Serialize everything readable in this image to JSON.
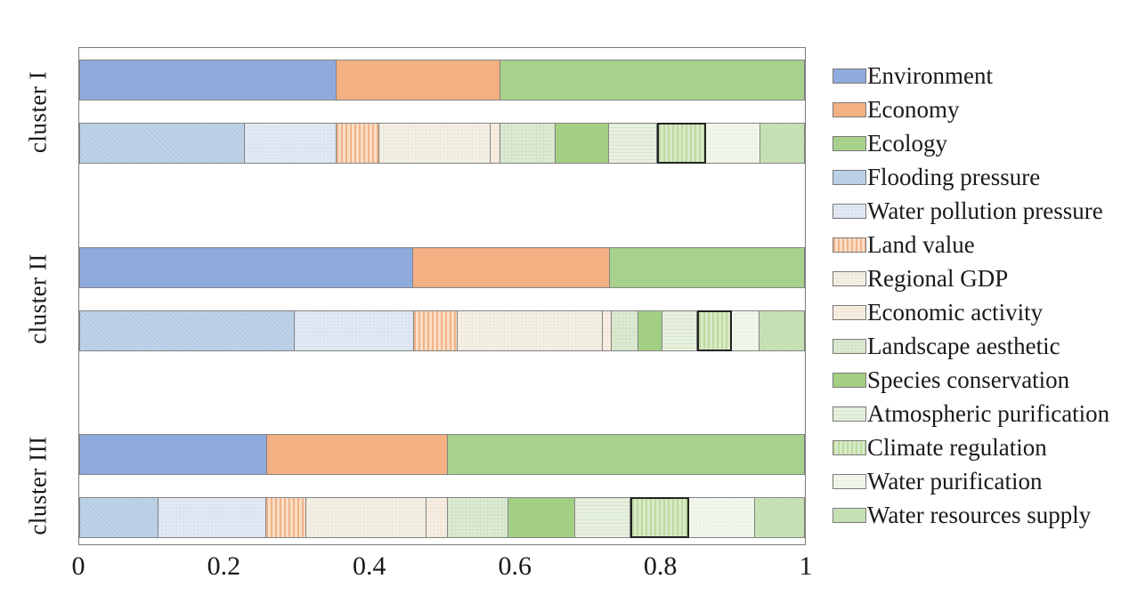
{
  "chart_data": {
    "type": "bar",
    "variant": "horizontal-stacked-proportion",
    "title": "",
    "xlabel": "",
    "ylabel": "",
    "xlim": [
      0,
      1
    ],
    "grid": false,
    "legend_position": "right",
    "x_ticks": [
      {
        "label": "0",
        "value": 0
      },
      {
        "label": "0.2",
        "value": 0.2
      },
      {
        "label": "0.4",
        "value": 0.4
      },
      {
        "label": "0.6",
        "value": 0.6
      },
      {
        "label": "0.8",
        "value": 0.8
      },
      {
        "label": "1",
        "value": 1
      }
    ],
    "groups": [
      "cluster I",
      "cluster II",
      "cluster III"
    ],
    "highlighted_series": "Climate regulation",
    "series": [
      {
        "name": "Environment",
        "color": "#8FAADC",
        "pattern": "solid"
      },
      {
        "name": "Economy",
        "color": "#F2B083",
        "pattern": "solid"
      },
      {
        "name": "Ecology",
        "color": "#A9D18E",
        "pattern": "solid"
      },
      {
        "name": "Flooding pressure",
        "color": "#BED3E7",
        "stripe": "#B0C8E0",
        "pattern": "diagonal"
      },
      {
        "name": "Water pollution pressure",
        "color": "#E4EAF3",
        "stripe": "#D8E1EE",
        "pattern": "grid"
      },
      {
        "name": "Land value",
        "color": "#FBDEC6",
        "stripe": "#F1B287",
        "pattern": "vstripes"
      },
      {
        "name": "Regional GDP",
        "color": "#F5F1E7",
        "stripe": "#EDE8DA",
        "pattern": "grid"
      },
      {
        "name": "Economic activity",
        "color": "#F8EFE4",
        "stripe": "#F1E5D4",
        "pattern": "grid"
      },
      {
        "name": "Landscape aesthetic",
        "color": "#DEEBD5",
        "stripe": "#D0E2C3",
        "pattern": "grid"
      },
      {
        "name": "Species conservation",
        "color": "#A3CF83",
        "pattern": "solid"
      },
      {
        "name": "Atmospheric purification",
        "color": "#E7F0DF",
        "stripe": "#D8E6CC",
        "pattern": "hlines"
      },
      {
        "name": "Climate regulation",
        "color": "#D8EAC7",
        "stripe": "#BCDA9F",
        "pattern": "vstripes",
        "highlight": true
      },
      {
        "name": "Water purification",
        "color": "#F3F8EF",
        "stripe": "#EAF2E2",
        "pattern": "grid"
      },
      {
        "name": "Water resources supply",
        "color": "#C9E2B7",
        "stripe": "#BDDAA9",
        "pattern": "diagonal"
      }
    ],
    "bars": [
      {
        "group": "cluster I",
        "level": "dimensions",
        "segments": [
          {
            "series": "Environment",
            "value": 0.355
          },
          {
            "series": "Economy",
            "value": 0.225
          },
          {
            "series": "Ecology",
            "value": 0.42
          }
        ]
      },
      {
        "group": "cluster I",
        "level": "indicators",
        "segments": [
          {
            "series": "Flooding pressure",
            "value": 0.228
          },
          {
            "series": "Water pollution pressure",
            "value": 0.127
          },
          {
            "series": "Land value",
            "value": 0.059
          },
          {
            "series": "Regional GDP",
            "value": 0.153
          },
          {
            "series": "Economic activity",
            "value": 0.013
          },
          {
            "series": "Landscape aesthetic",
            "value": 0.076
          },
          {
            "series": "Species conservation",
            "value": 0.074
          },
          {
            "series": "Atmospheric purification",
            "value": 0.066
          },
          {
            "series": "Climate regulation",
            "value": 0.068
          },
          {
            "series": "Water purification",
            "value": 0.075
          },
          {
            "series": "Water resources supply",
            "value": 0.061
          }
        ]
      },
      {
        "group": "cluster II",
        "level": "dimensions",
        "segments": [
          {
            "series": "Environment",
            "value": 0.46
          },
          {
            "series": "Economy",
            "value": 0.271
          },
          {
            "series": "Ecology",
            "value": 0.269
          }
        ]
      },
      {
        "group": "cluster II",
        "level": "indicators",
        "segments": [
          {
            "series": "Flooding pressure",
            "value": 0.297
          },
          {
            "series": "Water pollution pressure",
            "value": 0.164
          },
          {
            "series": "Land value",
            "value": 0.06
          },
          {
            "series": "Regional GDP",
            "value": 0.201
          },
          {
            "series": "Economic activity",
            "value": 0.012
          },
          {
            "series": "Landscape aesthetic",
            "value": 0.037
          },
          {
            "series": "Species conservation",
            "value": 0.033
          },
          {
            "series": "Atmospheric purification",
            "value": 0.047
          },
          {
            "series": "Climate regulation",
            "value": 0.049
          },
          {
            "series": "Water purification",
            "value": 0.037
          },
          {
            "series": "Water resources supply",
            "value": 0.063
          }
        ]
      },
      {
        "group": "cluster III",
        "level": "dimensions",
        "segments": [
          {
            "series": "Environment",
            "value": 0.259
          },
          {
            "series": "Economy",
            "value": 0.249
          },
          {
            "series": "Ecology",
            "value": 0.492
          }
        ]
      },
      {
        "group": "cluster III",
        "level": "indicators",
        "segments": [
          {
            "series": "Flooding pressure",
            "value": 0.109
          },
          {
            "series": "Water pollution pressure",
            "value": 0.149
          },
          {
            "series": "Land value",
            "value": 0.055
          },
          {
            "series": "Regional GDP",
            "value": 0.165
          },
          {
            "series": "Economic activity",
            "value": 0.03
          },
          {
            "series": "Landscape aesthetic",
            "value": 0.084
          },
          {
            "series": "Species conservation",
            "value": 0.091
          },
          {
            "series": "Atmospheric purification",
            "value": 0.077
          },
          {
            "series": "Climate regulation",
            "value": 0.08
          },
          {
            "series": "Water purification",
            "value": 0.091
          },
          {
            "series": "Water resources supply",
            "value": 0.069
          }
        ]
      }
    ],
    "legend_items": [
      "Environment",
      "Economy",
      "Ecology",
      "Flooding pressure",
      "Water pollution pressure",
      "Land value",
      "Regional GDP",
      "Economic activity",
      "Landscape aesthetic",
      "Species conservation",
      "Atmospheric purification",
      "Climate regulation",
      "Water purification",
      "Water resources supply"
    ]
  }
}
